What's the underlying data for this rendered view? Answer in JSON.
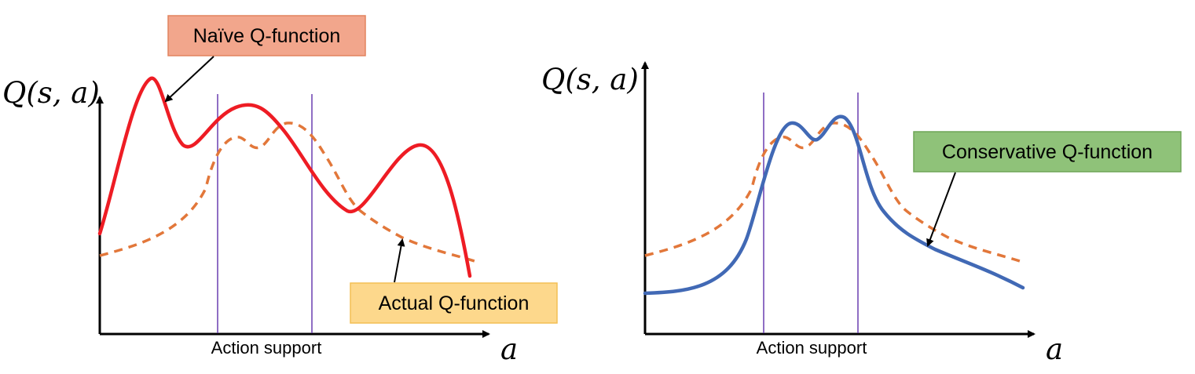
{
  "panels": [
    {
      "y_axis_label": "Q(s, a)",
      "x_axis_label": "a",
      "support_label": "Action support",
      "callouts": [
        {
          "text": "Naïve Q-function",
          "fill": "#f2a68c",
          "border": "#e2835f"
        },
        {
          "text": "Actual Q-function",
          "fill": "#fdd88c",
          "border": "#f3bf55"
        }
      ]
    },
    {
      "y_axis_label": "Q(s, a)",
      "x_axis_label": "a",
      "support_label": "Action support",
      "callouts": [
        {
          "text": "Conservative Q-function",
          "fill": "#8fc279",
          "border": "#6fa557"
        }
      ]
    }
  ],
  "colors": {
    "naive_curve": "#ee1c24",
    "actual_curve": "#e2773a",
    "conservative_curve": "#4169b5",
    "support_line": "#6a3fb0",
    "axis": "#000000"
  }
}
